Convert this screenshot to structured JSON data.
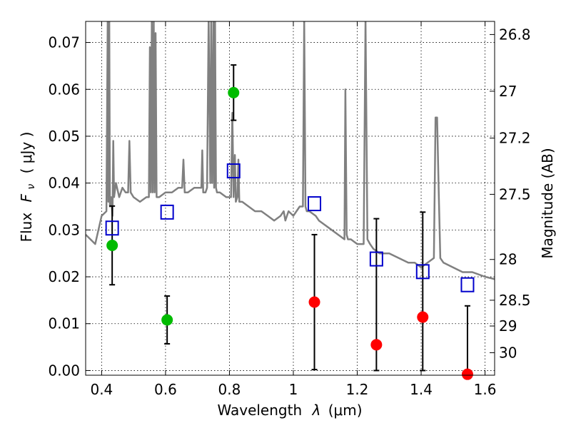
{
  "chart_data": {
    "type": "scatter",
    "xlabel_text": "Wavelength",
    "xlabel_symbol": "λ",
    "xlabel_unit": "(μm)",
    "ylabel_text": "Flux",
    "ylabel_symbol": "F",
    "ylabel_symbol_sub": "ν",
    "ylabel_unit": "( μJy )",
    "ylabel_right": "Magnitude (AB)",
    "xlim": [
      0.35,
      1.63
    ],
    "ylim": [
      -0.001,
      0.0745
    ],
    "xticks": [
      0.4,
      0.6,
      0.8,
      1.0,
      1.2,
      1.4,
      1.6
    ],
    "xtick_labels": [
      "0.4",
      "0.6",
      "0.8",
      "1",
      "1.2",
      "1.4",
      "1.6"
    ],
    "yticks": [
      0.0,
      0.01,
      0.02,
      0.03,
      0.04,
      0.05,
      0.06,
      0.07
    ],
    "ytick_labels": [
      "0.00",
      "0.01",
      "0.02",
      "0.03",
      "0.04",
      "0.05",
      "0.06",
      "0.07"
    ],
    "right_ticks": [
      {
        "label": "26.8",
        "flux": 0.0717
      },
      {
        "label": "27",
        "flux": 0.0596
      },
      {
        "label": "27.2",
        "flux": 0.0496
      },
      {
        "label": "27.5",
        "flux": 0.0376
      },
      {
        "label": "28",
        "flux": 0.0237
      },
      {
        "label": "28.5",
        "flux": 0.015
      },
      {
        "label": "29",
        "flux": 0.0095
      },
      {
        "label": "30",
        "flux": 0.0038
      }
    ],
    "grid": true,
    "colors": {
      "model": "#808080",
      "detection": "#00bb00",
      "nondetection": "#ff0000",
      "model_photometry": "#0000cc",
      "errorbar": "#000000"
    },
    "model_spectrum": {
      "x": [
        0.35,
        0.38,
        0.4,
        0.415,
        0.419,
        0.421,
        0.424,
        0.426,
        0.43,
        0.434,
        0.4365,
        0.439,
        0.445,
        0.455,
        0.465,
        0.475,
        0.483,
        0.487,
        0.491,
        0.5,
        0.52,
        0.54,
        0.548,
        0.551,
        0.554,
        0.557,
        0.56,
        0.563,
        0.566,
        0.569,
        0.572,
        0.58,
        0.6,
        0.62,
        0.64,
        0.652,
        0.656,
        0.66,
        0.67,
        0.69,
        0.7,
        0.712,
        0.715,
        0.718,
        0.725,
        0.73,
        0.735,
        0.74,
        0.743,
        0.746,
        0.75,
        0.752,
        0.755,
        0.758,
        0.761,
        0.77,
        0.79,
        0.805,
        0.809,
        0.813,
        0.817,
        0.82,
        0.825,
        0.828,
        0.831,
        0.84,
        0.86,
        0.88,
        0.9,
        0.92,
        0.94,
        0.96,
        0.97,
        0.975,
        0.98,
        0.985,
        1.0,
        1.02,
        1.03,
        1.034,
        1.038,
        1.042,
        1.05,
        1.07,
        1.08,
        1.1,
        1.12,
        1.14,
        1.16,
        1.163,
        1.167,
        1.171,
        1.18,
        1.2,
        1.21,
        1.22,
        1.226,
        1.232,
        1.24,
        1.25,
        1.27,
        1.3,
        1.33,
        1.36,
        1.38,
        1.4,
        1.42,
        1.44,
        1.445,
        1.45,
        1.455,
        1.46,
        1.47,
        1.5,
        1.53,
        1.56,
        1.6,
        1.63
      ],
      "y": [
        0.029,
        0.027,
        0.033,
        0.034,
        0.075,
        0.036,
        0.075,
        0.035,
        0.037,
        0.033,
        0.049,
        0.037,
        0.04,
        0.037,
        0.039,
        0.038,
        0.038,
        0.049,
        0.038,
        0.037,
        0.036,
        0.037,
        0.037,
        0.069,
        0.038,
        0.075,
        0.038,
        0.075,
        0.038,
        0.072,
        0.037,
        0.037,
        0.038,
        0.038,
        0.039,
        0.039,
        0.045,
        0.038,
        0.038,
        0.039,
        0.039,
        0.039,
        0.047,
        0.038,
        0.038,
        0.039,
        0.075,
        0.04,
        0.075,
        0.04,
        0.075,
        0.039,
        0.075,
        0.039,
        0.038,
        0.038,
        0.037,
        0.037,
        0.055,
        0.037,
        0.046,
        0.036,
        0.037,
        0.045,
        0.036,
        0.036,
        0.035,
        0.034,
        0.034,
        0.033,
        0.032,
        0.033,
        0.034,
        0.032,
        0.033,
        0.034,
        0.033,
        0.035,
        0.035,
        0.075,
        0.035,
        0.034,
        0.034,
        0.033,
        0.032,
        0.031,
        0.03,
        0.029,
        0.028,
        0.06,
        0.029,
        0.028,
        0.028,
        0.027,
        0.027,
        0.027,
        0.075,
        0.028,
        0.027,
        0.026,
        0.025,
        0.025,
        0.024,
        0.023,
        0.023,
        0.022,
        0.023,
        0.024,
        0.054,
        0.054,
        0.038,
        0.024,
        0.023,
        0.022,
        0.021,
        0.021,
        0.02,
        0.0195
      ]
    },
    "model_photometry": {
      "x": [
        0.433,
        0.605,
        0.813,
        1.066,
        1.26,
        1.405,
        1.545
      ],
      "y": [
        0.0304,
        0.0338,
        0.0426,
        0.0356,
        0.0238,
        0.0211,
        0.0183
      ]
    },
    "detections": {
      "x": [
        0.433,
        0.605,
        0.813
      ],
      "y": [
        0.0267,
        0.0108,
        0.0593
      ],
      "err": [
        0.0084,
        0.0051,
        0.0059
      ]
    },
    "nondetections": {
      "x": [
        1.066,
        1.26,
        1.405,
        1.545
      ],
      "y": [
        0.0146,
        0.0055,
        0.0114,
        -0.0008
      ],
      "err_low": [
        0.0144,
        0.0055,
        0.0114,
        0.0
      ],
      "err_high": [
        0.0144,
        0.0269,
        0.0224,
        0.0146
      ]
    }
  }
}
